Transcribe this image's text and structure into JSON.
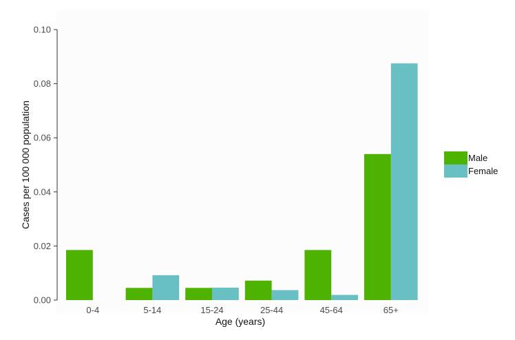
{
  "chart_data": {
    "type": "bar",
    "title": "",
    "xlabel": "Age (years)",
    "ylabel": "Cases per 100 000 population",
    "categories": [
      "0-4",
      "5-14",
      "15-24",
      "25-44",
      "45-64",
      "65+"
    ],
    "series": [
      {
        "name": "Male",
        "color": "#4db300",
        "values": [
          0.0185,
          0.0045,
          0.0045,
          0.0072,
          0.0185,
          0.054
        ]
      },
      {
        "name": "Female",
        "color": "#69c0c3",
        "values": [
          0,
          0.0092,
          0.0046,
          0.0037,
          0.0019,
          0.0875
        ]
      }
    ],
    "ylim": [
      0,
      0.1
    ],
    "yticks": [
      "0.00",
      "0.02",
      "0.04",
      "0.06",
      "0.08",
      "0.10"
    ],
    "grid": false,
    "legend_position": "right"
  }
}
